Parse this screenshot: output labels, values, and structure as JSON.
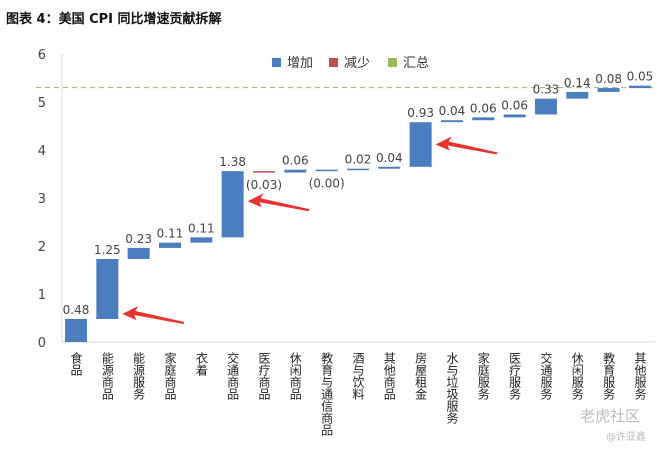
{
  "title": "图表 4：美国 CPI 同比增速贡献拆解",
  "watermark": "老虎社区",
  "watermark_user": "@许亚鑫",
  "chart_data": {
    "type": "waterfall",
    "title": "图表 4：美国 CPI 同比增速贡献拆解",
    "categories": [
      "食品",
      "能源商品",
      "能源服务",
      "家庭商品",
      "衣着",
      "交通商品",
      "医疗商品",
      "休闲商品",
      "教育与通信商品",
      "酒与饮料",
      "其他商品",
      "房屋租金",
      "水与垃圾服务",
      "家庭服务",
      "医疗服务",
      "交通服务",
      "休闲服务",
      "教育服务",
      "其他服务"
    ],
    "values": [
      0.48,
      1.25,
      0.23,
      0.11,
      0.11,
      1.38,
      -0.03,
      0.06,
      0.0,
      0.02,
      0.04,
      0.93,
      0.04,
      0.06,
      0.06,
      0.33,
      0.14,
      0.08,
      0.05
    ],
    "labels": [
      "0.48",
      "1.25",
      "0.23",
      "0.11",
      "0.11",
      "1.38",
      "(0.03)",
      "0.06",
      "(0.00)",
      "0.02",
      "0.04",
      "0.93",
      "0.04",
      "0.06",
      "0.06",
      "0.33",
      "0.14",
      "0.08",
      "0.05"
    ],
    "total_line": 5.3,
    "legend": [
      "增加",
      "减少",
      "汇总"
    ],
    "legend_position": "top",
    "colors": {
      "increase": "#4a7ebf",
      "decrease": "#c0504d",
      "total": "#9bbb59"
    },
    "ylim": [
      0,
      6
    ],
    "yticks": [
      0,
      1,
      2,
      3,
      4,
      5,
      6
    ],
    "arrows_at": [
      "能源商品",
      "交通商品",
      "房屋租金"
    ]
  }
}
